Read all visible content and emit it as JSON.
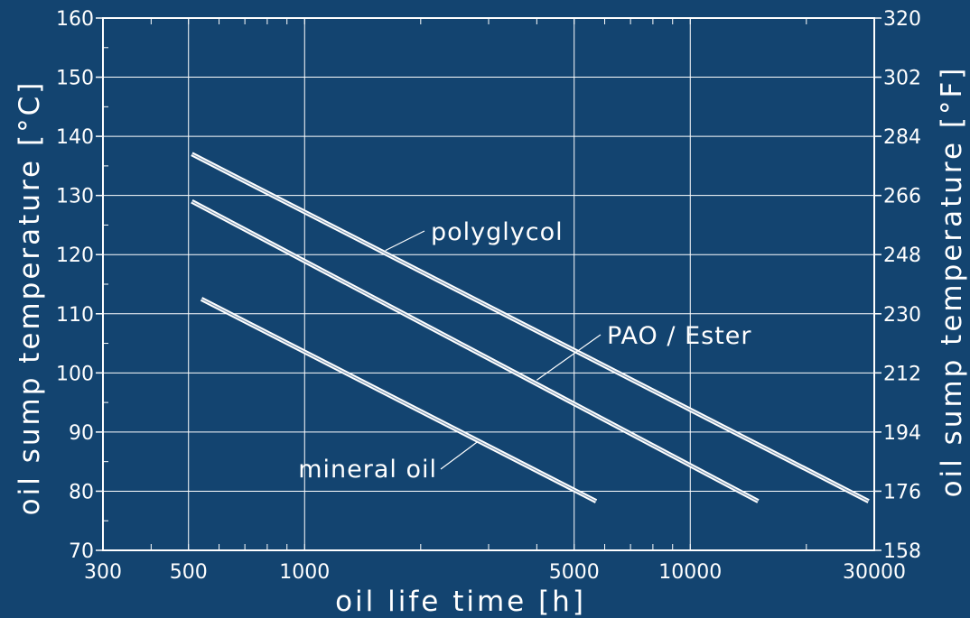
{
  "chart_data": {
    "type": "line",
    "x_scale": "log",
    "grid": true,
    "legend": "inline labels on curves",
    "colors": {
      "background": "#134470",
      "foreground": "#ffffff"
    },
    "xlabel": "oil life time [h]",
    "ylabel": "oil sump temperature [°C]",
    "ylabel_right": "oil sump temperature [°F]",
    "xlim": [
      300,
      30000
    ],
    "ylim": [
      70,
      160
    ],
    "ylim_right": [
      158,
      320
    ],
    "x_ticks": [
      300,
      500,
      1000,
      5000,
      10000,
      30000
    ],
    "x_tick_labels": [
      "300",
      "500",
      "1000",
      "5000",
      "10000",
      "30000"
    ],
    "y_ticks": [
      70,
      80,
      90,
      100,
      110,
      120,
      130,
      140,
      150,
      160
    ],
    "y_tick_labels": [
      "70",
      "80",
      "90",
      "100",
      "110",
      "120",
      "130",
      "140",
      "150",
      "160"
    ],
    "y_right_ticks": [
      158,
      176,
      194,
      212,
      230,
      248,
      266,
      284,
      302,
      320
    ],
    "y_right_tick_labels": [
      "158",
      "176",
      "194",
      "212",
      "230",
      "248",
      "266",
      "284",
      "302",
      "320"
    ],
    "series": [
      {
        "name": "polyglycol",
        "x": [
          510,
          29000
        ],
        "y": [
          137,
          78.3
        ]
      },
      {
        "name": "PAO / Ester",
        "x": [
          510,
          15000
        ],
        "y": [
          129,
          78.3
        ]
      },
      {
        "name": "mineral oil",
        "x": [
          540,
          5700
        ],
        "y": [
          112.5,
          78.3
        ]
      }
    ],
    "annotations": [
      {
        "text": "polyglycol",
        "points_to_series": 0,
        "anchor_x": 1620,
        "anchor_y": 120.7
      },
      {
        "text": "PAO / Ester",
        "points_to_series": 1,
        "anchor_x": 4000,
        "anchor_y": 98.8
      },
      {
        "text": "mineral oil",
        "points_to_series": 2,
        "anchor_x": 2800,
        "anchor_y": 88.3
      }
    ]
  }
}
